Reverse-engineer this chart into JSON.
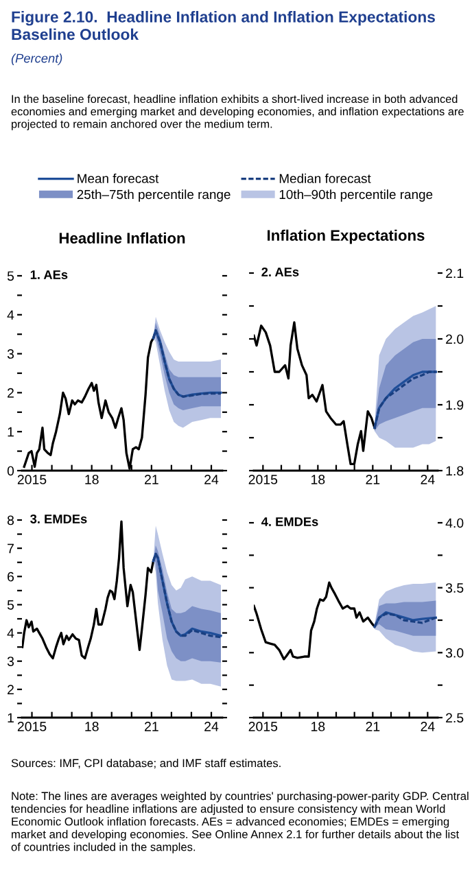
{
  "chart_data": [
    {
      "type": "line",
      "title": "Headline Inflation",
      "subtitle": "1. AEs",
      "annotations": [
        "Figure 2.10.  Headline Inflation and Inflation Expectations Baseline Outlook",
        "(Percent)",
        "In the baseline forecast, headline inflation exhibits a short-lived increase in both advanced economies and emerging market and developing economies, and inflation expectations are projected to remain anchored over the medium term."
      ],
      "legend": "top",
      "xlim": [
        2014.5,
        2024.55
      ],
      "xticks": [
        2015,
        {
          "value": 2016,
          "label": null
        },
        {
          "value": 2017,
          "label": null
        },
        {
          "value": 2018,
          "label": "18"
        },
        {
          "value": 2019,
          "label": null
        },
        {
          "value": 2020,
          "label": null
        },
        {
          "value": 2021,
          "label": "21"
        },
        {
          "value": 2022,
          "label": null
        },
        {
          "value": 2023,
          "label": null
        },
        {
          "value": 2024,
          "label": "24"
        }
      ],
      "ylim": [
        0,
        5
      ],
      "yticks": [
        0,
        {
          "value": 0.5,
          "label": null
        },
        1,
        {
          "value": 1.5,
          "label": null
        },
        2,
        {
          "value": 2.5,
          "label": null
        },
        3,
        {
          "value": 3.5,
          "label": null
        },
        4,
        {
          "value": 4.5,
          "label": null
        },
        5
      ],
      "series": [
        {
          "color": "#000000",
          "x": [
            2014.61,
            2014.84,
            2014.98,
            2015.14,
            2015.25,
            2015.37,
            2015.53,
            2015.62,
            2015.8,
            2015.94,
            2016.05,
            2016.21,
            2016.4,
            2016.56,
            2016.69,
            2016.85,
            2017.02,
            2017.15,
            2017.31,
            2017.5,
            2017.66,
            2017.84,
            2018.0,
            2018.11,
            2018.23,
            2018.34,
            2018.5,
            2018.69,
            2018.85,
            2019.03,
            2019.19,
            2019.33,
            2019.49,
            2019.6,
            2019.74,
            2019.9,
            2020.06,
            2020.22,
            2020.36,
            2020.52,
            2020.7,
            2020.82,
            2020.98,
            2021.09
          ],
          "values": [
            0.1,
            0.45,
            0.5,
            0.1,
            0.45,
            0.55,
            1.1,
            0.55,
            0.45,
            0.4,
            0.7,
            1.0,
            1.45,
            2.0,
            1.85,
            1.45,
            1.8,
            1.7,
            1.8,
            1.75,
            1.9,
            2.1,
            2.25,
            2.05,
            2.2,
            1.75,
            1.35,
            1.8,
            1.5,
            1.35,
            1.1,
            1.35,
            1.6,
            1.3,
            0.45,
            0.05,
            0.55,
            0.6,
            0.55,
            0.85,
            1.95,
            2.9,
            3.3,
            3.4
          ]
        },
        {
          "name": "10th–90th percentile range",
          "color": "#b9c4e4",
          "x": [
            2021.09,
            2021.21,
            2021.43,
            2021.66,
            2021.89,
            2022.12,
            2022.35,
            2022.58,
            2023.04,
            2023.5,
            2023.95,
            2024.48
          ],
          "values": [
            null,
            null,
            null,
            null,
            null,
            null,
            null,
            null,
            null,
            null,
            null,
            null
          ],
          "lower": [
            3.4,
            3.3,
            2.7,
            2.05,
            1.55,
            1.25,
            1.15,
            1.1,
            1.25,
            1.3,
            1.35,
            1.35
          ],
          "upper": [
            3.4,
            3.95,
            3.6,
            3.3,
            3.05,
            2.85,
            2.8,
            2.8,
            2.8,
            2.8,
            2.8,
            2.85
          ]
        },
        {
          "name": "25th–75th percentile range",
          "color": "#7d90c6",
          "x": [
            2021.09,
            2021.21,
            2021.43,
            2021.66,
            2021.89,
            2022.12,
            2022.35,
            2022.58,
            2023.04,
            2023.5,
            2023.95,
            2024.48
          ],
          "values": [
            null,
            null,
            null,
            null,
            null,
            null,
            null,
            null,
            null,
            null,
            null,
            null
          ],
          "lower": [
            3.4,
            3.45,
            3.0,
            2.45,
            2.0,
            1.7,
            1.6,
            1.55,
            1.6,
            1.65,
            1.65,
            1.65
          ],
          "upper": [
            3.4,
            3.8,
            3.45,
            3.0,
            2.6,
            2.45,
            2.4,
            2.4,
            2.4,
            2.4,
            2.4,
            2.4
          ]
        },
        {
          "name": "Mean forecast",
          "color": "#1f4e99",
          "x": [
            2021.09,
            2021.21,
            2021.43,
            2021.66,
            2021.89,
            2022.12,
            2022.35,
            2022.58,
            2023.04,
            2023.5,
            2023.95,
            2024.48
          ],
          "values": [
            3.4,
            3.6,
            3.3,
            2.8,
            2.35,
            2.1,
            1.95,
            1.9,
            1.95,
            1.98,
            2.0,
            2.0
          ]
        },
        {
          "name": "Median forecast",
          "color": "#1a3f80",
          "line_style": "dashed",
          "x": [
            2021.09,
            2021.21,
            2021.43,
            2021.66,
            2021.89,
            2022.12,
            2022.35,
            2022.58,
            2023.04,
            2023.5,
            2023.95,
            2024.48
          ],
          "values": [
            3.4,
            3.6,
            3.3,
            2.8,
            2.35,
            2.1,
            1.95,
            1.9,
            1.93,
            1.97,
            1.98,
            1.98
          ]
        }
      ]
    },
    {
      "type": "line",
      "title": "Inflation Expectations",
      "subtitle": "2. AEs",
      "xlim": [
        2014.5,
        2024.55
      ],
      "xticks": [
        2015,
        {
          "value": 2016,
          "label": null
        },
        {
          "value": 2017,
          "label": null
        },
        {
          "value": 2018,
          "label": "18"
        },
        {
          "value": 2019,
          "label": null
        },
        {
          "value": 2020,
          "label": null
        },
        {
          "value": 2021,
          "label": "21"
        },
        {
          "value": 2022,
          "label": null
        },
        {
          "value": 2023,
          "label": null
        },
        {
          "value": 2024,
          "label": "24"
        }
      ],
      "y2lim": [
        1.8,
        2.1
      ],
      "y2ticks": [
        1.8,
        {
          "value": 1.85,
          "label": null
        },
        1.9,
        {
          "value": 1.95,
          "label": null
        },
        {
          "value": 2.0,
          "label": "2.0"
        },
        {
          "value": 2.05,
          "label": null
        },
        2.1
      ],
      "series": [
        {
          "axis": "y2",
          "color": "#000000",
          "x": [
            2014.5,
            2014.65,
            2014.9,
            2015.15,
            2015.39,
            2015.64,
            2015.89,
            2016.21,
            2016.39,
            2016.51,
            2016.71,
            2016.88,
            2017.13,
            2017.38,
            2017.5,
            2017.7,
            2017.93,
            2018.25,
            2018.45,
            2018.69,
            2018.99,
            2019.24,
            2019.41,
            2019.61,
            2019.79,
            2019.99,
            2020.18,
            2020.36,
            2020.48,
            2020.73,
            2020.93,
            2021.1
          ],
          "values": [
            2.005,
            1.99,
            2.02,
            2.01,
            1.99,
            1.95,
            1.95,
            1.96,
            1.94,
            1.99,
            2.025,
            1.985,
            1.96,
            1.945,
            1.91,
            1.915,
            1.905,
            1.93,
            1.89,
            1.88,
            1.87,
            1.87,
            1.875,
            1.84,
            1.81,
            1.81,
            1.84,
            1.86,
            1.83,
            1.89,
            1.88,
            1.865
          ]
        },
        {
          "axis": "y2",
          "color": "#b9c4e4",
          "x": [
            2021.1,
            2021.35,
            2021.72,
            2022.22,
            2022.71,
            2023.21,
            2023.71,
            2024.08,
            2024.45
          ],
          "values": [
            null,
            null,
            null,
            null,
            null,
            null,
            null,
            null,
            null
          ],
          "lower": [
            1.86,
            1.85,
            1.845,
            1.835,
            1.835,
            1.835,
            1.84,
            1.84,
            1.845
          ],
          "upper": [
            1.87,
            1.975,
            2.0,
            2.015,
            2.025,
            2.035,
            2.04,
            2.045,
            2.05
          ]
        },
        {
          "axis": "y2",
          "color": "#7d90c6",
          "x": [
            2021.1,
            2021.35,
            2021.72,
            2022.22,
            2022.71,
            2023.21,
            2023.71,
            2024.08,
            2024.45
          ],
          "values": [
            null,
            null,
            null,
            null,
            null,
            null,
            null,
            null,
            null
          ],
          "lower": [
            1.86,
            1.87,
            1.875,
            1.88,
            1.885,
            1.89,
            1.895,
            1.895,
            1.895
          ],
          "upper": [
            1.87,
            1.925,
            1.96,
            1.975,
            1.985,
            1.995,
            2.0,
            2.0,
            2.0
          ]
        },
        {
          "axis": "y2",
          "color": "#1f4e99",
          "x": [
            2021.1,
            2021.35,
            2021.72,
            2022.22,
            2022.71,
            2023.21,
            2023.71,
            2024.08,
            2024.45
          ],
          "values": [
            1.865,
            1.895,
            1.91,
            1.925,
            1.935,
            1.945,
            1.95,
            1.95,
            1.95
          ]
        },
        {
          "axis": "y2",
          "color": "#1a3f80",
          "line_style": "dashed",
          "x": [
            2021.1,
            2021.35,
            2021.72,
            2022.22,
            2022.71,
            2023.21,
            2023.71,
            2024.08,
            2024.45
          ],
          "values": [
            1.865,
            1.895,
            1.91,
            1.92,
            1.93,
            1.94,
            1.945,
            1.95,
            1.95
          ]
        }
      ]
    },
    {
      "type": "line",
      "subtitle": "3. EMDEs",
      "annotations": [
        "Sources: IMF, CPI database; and IMF staff estimates.",
        "Note: The lines are averages weighted by countries' purchasing-power-parity GDP. Central tendencies for headline inflations are adjusted to ensure consistency with mean World Economic Outlook inflation forecasts. AEs = advanced economies; EMDEs = emerging market and developing economies. See Online Annex 2.1 for further details about the list of countries included in the samples."
      ],
      "xlim": [
        2014.5,
        2024.55
      ],
      "xticks": [
        2015,
        {
          "value": 2016,
          "label": null
        },
        {
          "value": 2017,
          "label": null
        },
        {
          "value": 2018,
          "label": "18"
        },
        {
          "value": 2019,
          "label": null
        },
        {
          "value": 2020,
          "label": null
        },
        {
          "value": 2021,
          "label": "21"
        },
        {
          "value": 2022,
          "label": null
        },
        {
          "value": 2023,
          "label": null
        },
        {
          "value": 2024,
          "label": "24"
        }
      ],
      "ylim": [
        1,
        8
      ],
      "yticks": [
        1,
        {
          "value": 1.5,
          "label": null
        },
        2,
        {
          "value": 2.5,
          "label": null
        },
        3,
        {
          "value": 3.5,
          "label": null
        },
        4,
        {
          "value": 4.5,
          "label": null
        },
        5,
        {
          "value": 5.5,
          "label": null
        },
        6,
        {
          "value": 6.5,
          "label": null
        },
        7,
        {
          "value": 7.5,
          "label": null
        },
        8
      ],
      "series": [
        {
          "color": "#000000",
          "x": [
            2014.52,
            2014.61,
            2014.73,
            2014.84,
            2014.98,
            2015.07,
            2015.25,
            2015.37,
            2015.53,
            2015.71,
            2015.89,
            2016.05,
            2016.21,
            2016.35,
            2016.47,
            2016.58,
            2016.74,
            2016.85,
            2017.04,
            2017.2,
            2017.36,
            2017.5,
            2017.66,
            2017.82,
            2017.95,
            2018.11,
            2018.23,
            2018.34,
            2018.5,
            2018.69,
            2018.8,
            2018.92,
            2019.03,
            2019.14,
            2019.26,
            2019.37,
            2019.49,
            2019.6,
            2019.79,
            2019.95,
            2020.06,
            2020.29,
            2020.4,
            2020.52,
            2020.7,
            2020.82,
            2020.98,
            2021.09
          ],
          "values": [
            3.5,
            4.0,
            4.45,
            4.2,
            4.4,
            4.05,
            4.15,
            4.0,
            3.8,
            3.5,
            3.25,
            3.1,
            3.5,
            3.8,
            4.0,
            3.6,
            3.9,
            3.75,
            3.95,
            3.8,
            3.75,
            3.2,
            3.1,
            3.5,
            3.8,
            4.3,
            4.85,
            4.3,
            4.3,
            4.85,
            5.25,
            5.5,
            5.45,
            5.2,
            5.85,
            6.65,
            7.95,
            6.3,
            4.95,
            5.7,
            5.45,
            4.05,
            3.4,
            4.15,
            5.35,
            6.3,
            6.15,
            6.55
          ]
        },
        {
          "color": "#b9c4e4",
          "x": [
            2021.09,
            2021.21,
            2021.32,
            2021.55,
            2021.78,
            2022.01,
            2022.24,
            2022.47,
            2022.69,
            2023.04,
            2023.5,
            2023.95,
            2024.48
          ],
          "values": [
            null,
            null,
            null,
            null,
            null,
            null,
            null,
            null,
            null,
            null,
            null,
            null,
            null
          ],
          "lower": [
            6.55,
            6.15,
            5.05,
            3.75,
            2.85,
            2.35,
            2.3,
            2.3,
            2.3,
            2.35,
            2.2,
            2.2,
            2.1
          ],
          "upper": [
            6.55,
            7.8,
            7.5,
            6.8,
            6.15,
            5.7,
            5.5,
            5.6,
            5.9,
            6.0,
            5.85,
            5.85,
            5.7
          ]
        },
        {
          "color": "#7d90c6",
          "x": [
            2021.09,
            2021.21,
            2021.32,
            2021.55,
            2021.78,
            2022.01,
            2022.24,
            2022.47,
            2022.69,
            2023.04,
            2023.5,
            2023.95,
            2024.48
          ],
          "values": [
            null,
            null,
            null,
            null,
            null,
            null,
            null,
            null,
            null,
            null,
            null,
            null,
            null
          ],
          "lower": [
            6.55,
            6.5,
            5.5,
            4.7,
            3.8,
            3.35,
            3.1,
            3.0,
            3.0,
            3.1,
            3.0,
            3.0,
            2.95
          ],
          "upper": [
            6.55,
            7.1,
            6.9,
            6.25,
            5.45,
            4.85,
            4.7,
            4.7,
            4.75,
            4.95,
            4.85,
            4.8,
            4.7
          ]
        },
        {
          "color": "#1f4e99",
          "x": [
            2021.09,
            2021.21,
            2021.32,
            2021.55,
            2021.78,
            2022.01,
            2022.24,
            2022.47,
            2022.69,
            2023.04,
            2023.5,
            2023.95,
            2024.48
          ],
          "values": [
            6.55,
            6.8,
            6.65,
            5.85,
            5.05,
            4.4,
            4.05,
            3.9,
            3.95,
            4.15,
            4.05,
            4.0,
            3.9
          ]
        },
        {
          "color": "#1a3f80",
          "line_style": "dashed",
          "x": [
            2021.09,
            2021.21,
            2021.32,
            2021.55,
            2021.78,
            2022.01,
            2022.24,
            2022.47,
            2022.69,
            2023.04,
            2023.5,
            2023.95,
            2024.48
          ],
          "values": [
            6.55,
            6.8,
            6.65,
            5.85,
            5.05,
            4.4,
            4.05,
            3.9,
            3.9,
            4.1,
            4.0,
            3.9,
            3.85
          ]
        }
      ]
    },
    {
      "type": "line",
      "subtitle": "4. EMDEs",
      "xlim": [
        2014.5,
        2024.55
      ],
      "xticks": [
        2015,
        {
          "value": 2016,
          "label": null
        },
        {
          "value": 2017,
          "label": null
        },
        {
          "value": 2018,
          "label": "18"
        },
        {
          "value": 2019,
          "label": null
        },
        {
          "value": 2020,
          "label": null
        },
        {
          "value": 2021,
          "label": "21"
        },
        {
          "value": 2022,
          "label": null
        },
        {
          "value": 2023,
          "label": null
        },
        {
          "value": 2024,
          "label": "24"
        }
      ],
      "y2lim": [
        2.5,
        4.0
      ],
      "y2ticks": [
        2.5,
        {
          "value": 2.75,
          "label": null
        },
        {
          "value": 3.0,
          "label": "3.0"
        },
        {
          "value": 3.25,
          "label": null
        },
        3.5,
        {
          "value": 3.75,
          "label": null
        },
        {
          "value": 4.0,
          "label": "4.0"
        }
      ],
      "series": [
        {
          "axis": "y2",
          "color": "#000000",
          "x": [
            2014.5,
            2014.65,
            2014.9,
            2015.15,
            2015.39,
            2015.64,
            2015.89,
            2016.14,
            2016.26,
            2016.51,
            2016.64,
            2016.88,
            2017.26,
            2017.5,
            2017.63,
            2017.8,
            2017.95,
            2018.12,
            2018.3,
            2018.45,
            2018.62,
            2018.74,
            2018.94,
            2019.12,
            2019.36,
            2019.61,
            2019.79,
            2019.99,
            2020.11,
            2020.28,
            2020.48,
            2020.73,
            2020.98,
            2021.1
          ],
          "values": [
            3.36,
            3.3,
            3.18,
            3.08,
            3.07,
            3.06,
            3.02,
            2.95,
            2.97,
            3.02,
            2.97,
            2.96,
            2.97,
            2.97,
            3.17,
            3.24,
            3.34,
            3.41,
            3.4,
            3.43,
            3.54,
            3.5,
            3.45,
            3.4,
            3.34,
            3.36,
            3.34,
            3.34,
            3.27,
            3.31,
            3.24,
            3.27,
            3.22,
            3.2
          ]
        },
        {
          "axis": "y2",
          "color": "#b9c4e4",
          "x": [
            2021.1,
            2021.35,
            2021.72,
            2022.22,
            2022.71,
            2023.21,
            2023.71,
            2024.45
          ],
          "values": [
            null,
            null,
            null,
            null,
            null,
            null,
            null,
            null
          ],
          "lower": [
            3.18,
            3.17,
            3.11,
            3.06,
            3.04,
            3.01,
            3.0,
            3.01
          ],
          "upper": [
            3.22,
            3.41,
            3.47,
            3.5,
            3.52,
            3.53,
            3.53,
            3.54
          ]
        },
        {
          "axis": "y2",
          "color": "#7d90c6",
          "x": [
            2021.1,
            2021.35,
            2021.72,
            2022.22,
            2022.71,
            2023.21,
            2023.71,
            2024.45
          ],
          "values": [
            null,
            null,
            null,
            null,
            null,
            null,
            null,
            null
          ],
          "lower": [
            3.19,
            3.22,
            3.18,
            3.17,
            3.15,
            3.13,
            3.13,
            3.13
          ],
          "upper": [
            3.21,
            3.36,
            3.38,
            3.38,
            3.39,
            3.39,
            3.39,
            3.4
          ]
        },
        {
          "axis": "y2",
          "color": "#1f4e99",
          "x": [
            2021.1,
            2021.35,
            2021.72,
            2022.22,
            2022.71,
            2023.21,
            2023.71,
            2024.45
          ],
          "values": [
            3.2,
            3.27,
            3.31,
            3.29,
            3.27,
            3.25,
            3.26,
            3.27
          ]
        },
        {
          "axis": "y2",
          "color": "#1a3f80",
          "line_style": "dashed",
          "x": [
            2021.1,
            2021.35,
            2021.72,
            2022.22,
            2022.71,
            2023.21,
            2023.71,
            2024.45
          ],
          "values": [
            3.2,
            3.27,
            3.3,
            3.29,
            3.25,
            3.24,
            3.23,
            3.27
          ]
        }
      ]
    }
  ]
}
